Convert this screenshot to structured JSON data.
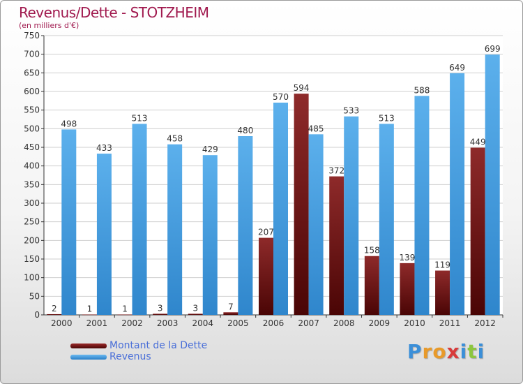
{
  "header": {
    "title": "Revenus/Dette - STOTZHEIM",
    "subtitle": "(en milliers d'€)"
  },
  "chart_data": {
    "type": "bar",
    "title": "Revenus/Dette - STOTZHEIM",
    "subtitle": "(en milliers d'€)",
    "xlabel": "",
    "ylabel": "",
    "ylim": [
      0,
      750
    ],
    "yticks": [
      0,
      50,
      100,
      150,
      200,
      250,
      300,
      350,
      400,
      450,
      500,
      550,
      600,
      650,
      700,
      750
    ],
    "grid": true,
    "legend_position": "bottom-left",
    "categories": [
      "2000",
      "2001",
      "2002",
      "2003",
      "2004",
      "2005",
      "2006",
      "2007",
      "2008",
      "2009",
      "2010",
      "2011",
      "2012"
    ],
    "series": [
      {
        "name": "Montant de la Dette",
        "color": "#7a1a1a",
        "values": [
          2,
          1,
          1,
          3,
          3,
          7,
          207,
          594,
          372,
          158,
          139,
          119,
          449
        ]
      },
      {
        "name": "Revenus",
        "color": "#4ea5e6",
        "values": [
          498,
          433,
          513,
          458,
          429,
          480,
          570,
          485,
          533,
          513,
          588,
          649,
          699
        ]
      }
    ]
  },
  "logo": {
    "letters": [
      "P",
      "r",
      "o",
      "x",
      "i",
      "t",
      "i"
    ],
    "colors": [
      "#3b8fd8",
      "#e89a2a",
      "#e89a2a",
      "#d83b3b",
      "#3b8fd8",
      "#8cc63f",
      "#3b8fd8"
    ]
  }
}
